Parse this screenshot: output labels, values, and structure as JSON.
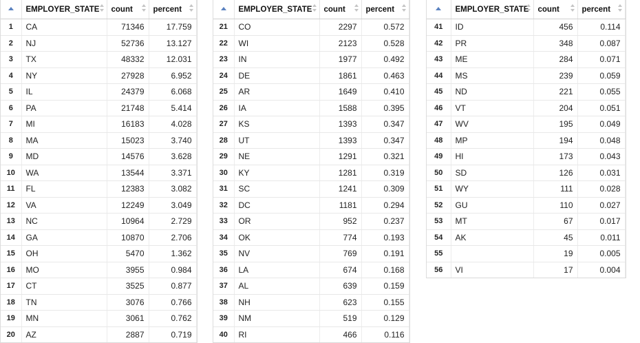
{
  "headers": {
    "state": "EMPLOYER_STATE",
    "count": "count",
    "percent": "percent"
  },
  "tables": [
    {
      "rows": [
        {
          "n": "1",
          "state": "CA",
          "count": "71346",
          "percent": "17.759"
        },
        {
          "n": "2",
          "state": "NJ",
          "count": "52736",
          "percent": "13.127"
        },
        {
          "n": "3",
          "state": "TX",
          "count": "48332",
          "percent": "12.031"
        },
        {
          "n": "4",
          "state": "NY",
          "count": "27928",
          "percent": "6.952"
        },
        {
          "n": "5",
          "state": "IL",
          "count": "24379",
          "percent": "6.068"
        },
        {
          "n": "6",
          "state": "PA",
          "count": "21748",
          "percent": "5.414"
        },
        {
          "n": "7",
          "state": "MI",
          "count": "16183",
          "percent": "4.028"
        },
        {
          "n": "8",
          "state": "MA",
          "count": "15023",
          "percent": "3.740"
        },
        {
          "n": "9",
          "state": "MD",
          "count": "14576",
          "percent": "3.628"
        },
        {
          "n": "10",
          "state": "WA",
          "count": "13544",
          "percent": "3.371"
        },
        {
          "n": "11",
          "state": "FL",
          "count": "12383",
          "percent": "3.082"
        },
        {
          "n": "12",
          "state": "VA",
          "count": "12249",
          "percent": "3.049"
        },
        {
          "n": "13",
          "state": "NC",
          "count": "10964",
          "percent": "2.729"
        },
        {
          "n": "14",
          "state": "GA",
          "count": "10870",
          "percent": "2.706"
        },
        {
          "n": "15",
          "state": "OH",
          "count": "5470",
          "percent": "1.362"
        },
        {
          "n": "16",
          "state": "MO",
          "count": "3955",
          "percent": "0.984"
        },
        {
          "n": "17",
          "state": "CT",
          "count": "3525",
          "percent": "0.877"
        },
        {
          "n": "18",
          "state": "TN",
          "count": "3076",
          "percent": "0.766"
        },
        {
          "n": "19",
          "state": "MN",
          "count": "3061",
          "percent": "0.762"
        },
        {
          "n": "20",
          "state": "AZ",
          "count": "2887",
          "percent": "0.719"
        }
      ]
    },
    {
      "rows": [
        {
          "n": "21",
          "state": "CO",
          "count": "2297",
          "percent": "0.572"
        },
        {
          "n": "22",
          "state": "WI",
          "count": "2123",
          "percent": "0.528"
        },
        {
          "n": "23",
          "state": "IN",
          "count": "1977",
          "percent": "0.492"
        },
        {
          "n": "24",
          "state": "DE",
          "count": "1861",
          "percent": "0.463"
        },
        {
          "n": "25",
          "state": "AR",
          "count": "1649",
          "percent": "0.410"
        },
        {
          "n": "26",
          "state": "IA",
          "count": "1588",
          "percent": "0.395"
        },
        {
          "n": "27",
          "state": "KS",
          "count": "1393",
          "percent": "0.347"
        },
        {
          "n": "28",
          "state": "UT",
          "count": "1393",
          "percent": "0.347"
        },
        {
          "n": "29",
          "state": "NE",
          "count": "1291",
          "percent": "0.321"
        },
        {
          "n": "30",
          "state": "KY",
          "count": "1281",
          "percent": "0.319"
        },
        {
          "n": "31",
          "state": "SC",
          "count": "1241",
          "percent": "0.309"
        },
        {
          "n": "32",
          "state": "DC",
          "count": "1181",
          "percent": "0.294"
        },
        {
          "n": "33",
          "state": "OR",
          "count": "952",
          "percent": "0.237"
        },
        {
          "n": "34",
          "state": "OK",
          "count": "774",
          "percent": "0.193"
        },
        {
          "n": "35",
          "state": "NV",
          "count": "769",
          "percent": "0.191"
        },
        {
          "n": "36",
          "state": "LA",
          "count": "674",
          "percent": "0.168"
        },
        {
          "n": "37",
          "state": "AL",
          "count": "639",
          "percent": "0.159"
        },
        {
          "n": "38",
          "state": "NH",
          "count": "623",
          "percent": "0.155"
        },
        {
          "n": "39",
          "state": "NM",
          "count": "519",
          "percent": "0.129"
        },
        {
          "n": "40",
          "state": "RI",
          "count": "466",
          "percent": "0.116"
        }
      ]
    },
    {
      "rows": [
        {
          "n": "41",
          "state": "ID",
          "count": "456",
          "percent": "0.114"
        },
        {
          "n": "42",
          "state": "PR",
          "count": "348",
          "percent": "0.087"
        },
        {
          "n": "43",
          "state": "ME",
          "count": "284",
          "percent": "0.071"
        },
        {
          "n": "44",
          "state": "MS",
          "count": "239",
          "percent": "0.059"
        },
        {
          "n": "45",
          "state": "ND",
          "count": "221",
          "percent": "0.055"
        },
        {
          "n": "46",
          "state": "VT",
          "count": "204",
          "percent": "0.051"
        },
        {
          "n": "47",
          "state": "WV",
          "count": "195",
          "percent": "0.049"
        },
        {
          "n": "48",
          "state": "MP",
          "count": "194",
          "percent": "0.048"
        },
        {
          "n": "49",
          "state": "HI",
          "count": "173",
          "percent": "0.043"
        },
        {
          "n": "50",
          "state": "SD",
          "count": "126",
          "percent": "0.031"
        },
        {
          "n": "51",
          "state": "WY",
          "count": "111",
          "percent": "0.028"
        },
        {
          "n": "52",
          "state": "GU",
          "count": "110",
          "percent": "0.027"
        },
        {
          "n": "53",
          "state": "MT",
          "count": "67",
          "percent": "0.017"
        },
        {
          "n": "54",
          "state": "AK",
          "count": "45",
          "percent": "0.011"
        },
        {
          "n": "55",
          "state": "",
          "count": "19",
          "percent": "0.005"
        },
        {
          "n": "56",
          "state": "VI",
          "count": "17",
          "percent": "0.004"
        }
      ]
    }
  ]
}
